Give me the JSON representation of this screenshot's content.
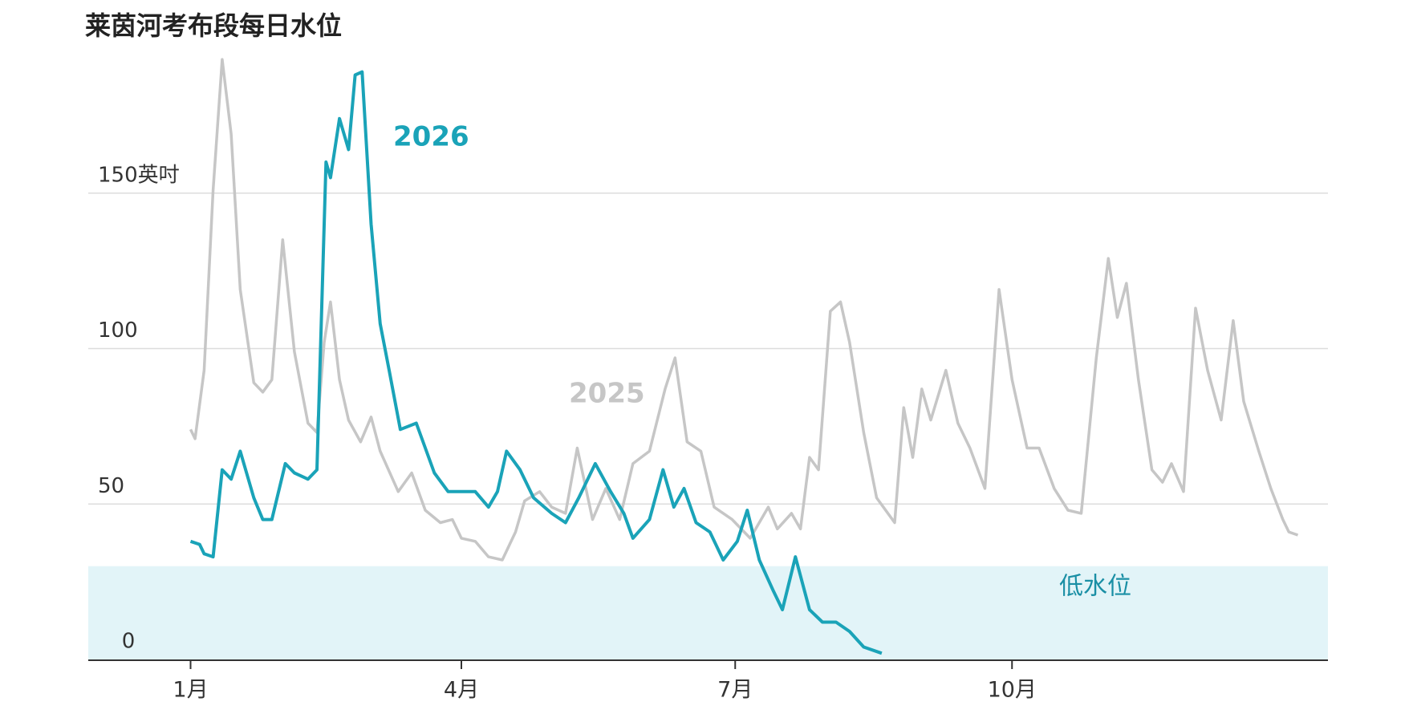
{
  "chart_data": {
    "type": "line",
    "title": "莱茵河考布段每日水位",
    "xlim": [
      -33,
      379
    ],
    "xticks": [
      {
        "value": 1,
        "label": "1月"
      },
      {
        "value": 91,
        "label": "4月"
      },
      {
        "value": 182,
        "label": "7月"
      },
      {
        "value": 274,
        "label": "10月"
      }
    ],
    "ylim": [
      0,
      200
    ],
    "yticks": [
      0,
      50,
      100,
      {
        "value": 150,
        "label": "150英吋"
      }
    ],
    "grid": true,
    "band": {
      "from": 0,
      "to": 30,
      "label": "低水位",
      "color": "#e2f4f8"
    },
    "series": [
      {
        "name": "2025",
        "color": "#c6c6c6",
        "x": [
          1,
          2.5,
          5.5,
          8.5,
          11.5,
          14.5,
          17.5,
          22,
          25,
          28,
          31.6,
          35.5,
          40,
          43,
          45.4,
          47.5,
          50.5,
          53.5,
          57.5,
          61,
          64,
          70,
          74.5,
          79,
          84,
          88,
          91,
          95.6,
          100,
          104.6,
          109,
          112,
          117,
          121,
          125.6,
          129.5,
          134.6,
          139,
          143.6,
          148,
          153.5,
          158.7,
          162,
          166,
          170.6,
          175,
          181,
          187,
          193,
          196,
          200.7,
          203.7,
          206.7,
          209.7,
          213.6,
          217,
          220,
          224.7,
          229,
          235,
          238,
          241,
          244,
          247,
          252,
          256,
          260,
          265,
          269.7,
          274,
          279,
          283,
          288,
          292.6,
          297,
          302,
          306,
          309,
          312,
          316,
          320.5,
          324,
          327,
          331,
          335,
          339,
          343.5,
          347.5,
          351,
          356,
          360,
          364,
          366,
          369
        ],
        "values": [
          74,
          71,
          93,
          151,
          193,
          169,
          119,
          89,
          86,
          90,
          135,
          99,
          76,
          73,
          102,
          115,
          90,
          77,
          70,
          78,
          67,
          54,
          60,
          48,
          44,
          45,
          39,
          38,
          33,
          32,
          41,
          51,
          54,
          49,
          47,
          68,
          45,
          55,
          45,
          63,
          67,
          87,
          97,
          70,
          67,
          49,
          45,
          39,
          49,
          42,
          47,
          42,
          65,
          61,
          112,
          115,
          102,
          73,
          52,
          44,
          81,
          65,
          87,
          77,
          93,
          76,
          68,
          55,
          119,
          90,
          68,
          68,
          55,
          48,
          47,
          97,
          129,
          110,
          121,
          90,
          61,
          57,
          63,
          54,
          113,
          93,
          77,
          109,
          83,
          67,
          55,
          45,
          41,
          40
        ]
      },
      {
        "name": "2026",
        "color": "#1aa3b8",
        "x": [
          1,
          4,
          5.5,
          8.5,
          11.5,
          14.5,
          17.5,
          22,
          25,
          28,
          32.5,
          35.5,
          40,
          43,
          46,
          47.5,
          50.5,
          53.5,
          55.7,
          58,
          61,
          64,
          67,
          70.7,
          76,
          82,
          86.6,
          91,
          95.6,
          100,
          103,
          106,
          110.5,
          115,
          121,
          125.6,
          130,
          135.5,
          140.6,
          145,
          148,
          153.5,
          158,
          161.6,
          165,
          169,
          173.6,
          178,
          182.7,
          186,
          190,
          194.7,
          197.7,
          202,
          206.7,
          211,
          215.5,
          220,
          224.7,
          230.7
        ],
        "values": [
          38,
          37,
          34,
          33,
          61,
          58,
          67,
          52,
          45,
          45,
          63,
          60,
          58,
          61,
          160,
          155,
          174,
          164,
          188,
          189,
          140,
          108,
          93,
          74,
          76,
          60,
          54,
          54,
          54,
          49,
          54,
          67,
          61,
          52,
          47,
          44,
          52,
          63,
          54,
          47,
          39,
          45,
          61,
          49,
          55,
          44,
          41,
          32,
          38,
          48,
          32,
          22,
          16,
          33,
          16,
          12,
          12,
          9,
          4,
          2
        ]
      }
    ]
  }
}
